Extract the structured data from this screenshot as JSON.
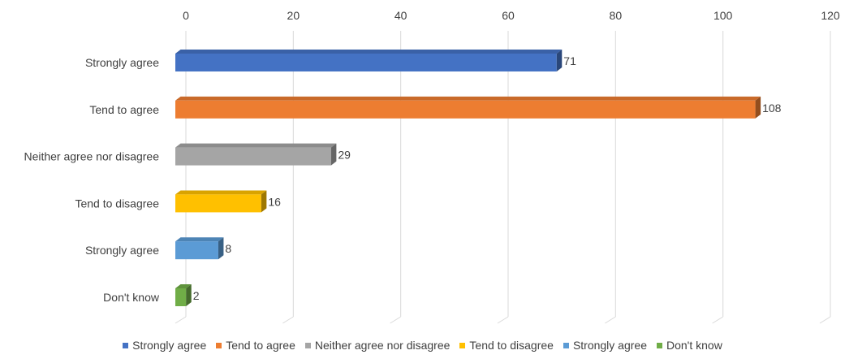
{
  "chart_data": {
    "type": "bar",
    "orientation": "horizontal",
    "style": "3d",
    "categories": [
      "Strongly agree",
      "Tend to agree",
      "Neither agree nor disagree",
      "Tend to disagree",
      "Strongly agree",
      "Don't know"
    ],
    "values": [
      71,
      108,
      29,
      16,
      8,
      2
    ],
    "data_labels": [
      "71",
      "108",
      "29",
      "16",
      "8",
      "2"
    ],
    "colors": [
      "#4472C4",
      "#ED7D31",
      "#A5A5A5",
      "#FFC000",
      "#5B9BD5",
      "#70AD47"
    ],
    "xlim": [
      0,
      120
    ],
    "x_ticks": [
      "0",
      "20",
      "40",
      "60",
      "80",
      "100",
      "120"
    ],
    "x_axis_position": "top",
    "grid": true,
    "legend_position": "bottom",
    "legend": [
      "Strongly agree",
      "Tend to agree",
      "Neither agree nor disagree",
      "Tend to disagree",
      "Strongly agree",
      "Don't know"
    ]
  }
}
